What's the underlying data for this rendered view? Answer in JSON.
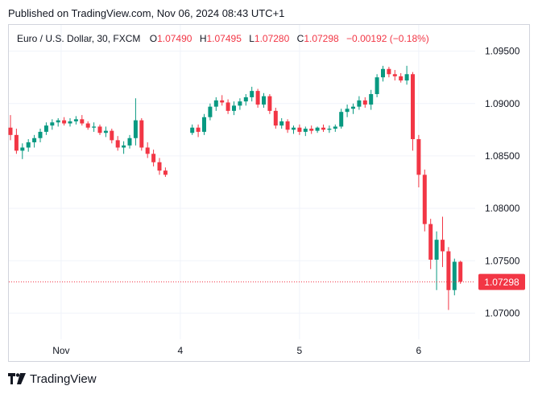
{
  "header": {
    "published": "Published on TradingView.com, Nov 06, 2024 08:43 UTC+1"
  },
  "legend": {
    "symbol": "Euro / U.S. Dollar, 30, FXCM",
    "open_label": "O",
    "open": "1.07490",
    "high_label": "H",
    "high": "1.07495",
    "low_label": "L",
    "low": "1.07280",
    "close_label": "C",
    "close": "1.07298",
    "change": "−0.00192 (−0.18%)"
  },
  "footer": {
    "brand": "TradingView"
  },
  "colors": {
    "up": "#089981",
    "down": "#f23645",
    "grid": "#f0f3fa",
    "axis_text": "#131722"
  },
  "chart_data": {
    "type": "candlestick",
    "xlabel": "",
    "ylabel": "",
    "ylim": [
      1.0675,
      1.0975
    ],
    "y_ticks": [
      "1.09500",
      "1.09000",
      "1.08500",
      "1.08000",
      "1.07500",
      "1.07000"
    ],
    "x_ticks": [
      {
        "label": "Nov",
        "t": 8.5
      },
      {
        "label": "4",
        "t": 28.5
      },
      {
        "label": "5",
        "t": 48.5
      },
      {
        "label": "6",
        "t": 68.5
      }
    ],
    "last_price": 1.07298,
    "last_price_label": "1.07298",
    "gap_after_index": 26,
    "candles": [
      [
        1.0877,
        1.0889,
        1.0865,
        1.087
      ],
      [
        1.087,
        1.0876,
        1.0852,
        1.0855
      ],
      [
        1.0855,
        1.0862,
        1.0847,
        1.0858
      ],
      [
        1.0858,
        1.0866,
        1.0854,
        1.0863
      ],
      [
        1.0863,
        1.087,
        1.0858,
        1.0867
      ],
      [
        1.0867,
        1.0876,
        1.0863,
        1.0873
      ],
      [
        1.0873,
        1.0882,
        1.087,
        1.0879
      ],
      [
        1.0879,
        1.0885,
        1.0875,
        1.0882
      ],
      [
        1.0882,
        1.0886,
        1.0878,
        1.0884
      ],
      [
        1.0884,
        1.0887,
        1.0879,
        1.0881
      ],
      [
        1.0881,
        1.0886,
        1.0878,
        1.0883
      ],
      [
        1.0883,
        1.0888,
        1.088,
        1.0885
      ],
      [
        1.0885,
        1.0889,
        1.0879,
        1.0881
      ],
      [
        1.0881,
        1.0883,
        1.0875,
        1.0877
      ],
      [
        1.0877,
        1.0882,
        1.0873,
        1.0878
      ],
      [
        1.0878,
        1.088,
        1.087,
        1.0872
      ],
      [
        1.0872,
        1.0878,
        1.0868,
        1.0874
      ],
      [
        1.0874,
        1.0876,
        1.0862,
        1.0865
      ],
      [
        1.0865,
        1.0869,
        1.0855,
        1.0858
      ],
      [
        1.0858,
        1.0864,
        1.0852,
        1.086
      ],
      [
        1.086,
        1.087,
        1.0857,
        1.0867
      ],
      [
        1.0867,
        1.0905,
        1.086,
        1.0884
      ],
      [
        1.0884,
        1.0886,
        1.0855,
        1.0858
      ],
      [
        1.0858,
        1.0863,
        1.0848,
        1.0852
      ],
      [
        1.0852,
        1.0856,
        1.084,
        1.0844
      ],
      [
        1.0844,
        1.0848,
        1.0832,
        1.0836
      ],
      [
        1.0836,
        1.0839,
        1.083,
        1.0832
      ],
      [
        1.0872,
        1.088,
        1.087,
        1.0877
      ],
      [
        1.0877,
        1.088,
        1.0868,
        1.0873
      ],
      [
        1.0873,
        1.089,
        1.087,
        1.0887
      ],
      [
        1.0887,
        1.09,
        1.0884,
        1.0897
      ],
      [
        1.0897,
        1.0906,
        1.0893,
        1.0903
      ],
      [
        1.0903,
        1.0908,
        1.0898,
        1.0901
      ],
      [
        1.0901,
        1.0904,
        1.089,
        1.0893
      ],
      [
        1.0893,
        1.0902,
        1.0889,
        1.0898
      ],
      [
        1.0898,
        1.0905,
        1.0894,
        1.0902
      ],
      [
        1.0902,
        1.0909,
        1.0898,
        1.0906
      ],
      [
        1.0906,
        1.0916,
        1.0902,
        1.0912
      ],
      [
        1.0912,
        1.0914,
        1.0896,
        1.0899
      ],
      [
        1.0899,
        1.091,
        1.0896,
        1.0907
      ],
      [
        1.0907,
        1.0909,
        1.089,
        1.0893
      ],
      [
        1.0893,
        1.0896,
        1.0876,
        1.0879
      ],
      [
        1.0879,
        1.0886,
        1.0876,
        1.0883
      ],
      [
        1.0883,
        1.0885,
        1.0872,
        1.0875
      ],
      [
        1.0875,
        1.0879,
        1.0871,
        1.0877
      ],
      [
        1.0877,
        1.088,
        1.087,
        1.0873
      ],
      [
        1.0873,
        1.0878,
        1.0869,
        1.0876
      ],
      [
        1.0876,
        1.0879,
        1.0871,
        1.0874
      ],
      [
        1.0874,
        1.0878,
        1.0872,
        1.0877
      ],
      [
        1.0877,
        1.088,
        1.0873,
        1.0875
      ],
      [
        1.0875,
        1.0879,
        1.0872,
        1.0876
      ],
      [
        1.0876,
        1.088,
        1.0873,
        1.0878
      ],
      [
        1.0878,
        1.0895,
        1.0876,
        1.0892
      ],
      [
        1.0892,
        1.0899,
        1.0887,
        1.0895
      ],
      [
        1.0895,
        1.09,
        1.089,
        1.0897
      ],
      [
        1.0897,
        1.0907,
        1.0894,
        1.0903
      ],
      [
        1.0903,
        1.0906,
        1.0896,
        1.0899
      ],
      [
        1.0899,
        1.0913,
        1.0894,
        1.0909
      ],
      [
        1.0909,
        1.0928,
        1.0906,
        1.0925
      ],
      [
        1.0925,
        1.0936,
        1.0921,
        1.0933
      ],
      [
        1.0933,
        1.0935,
        1.0925,
        1.0928
      ],
      [
        1.0928,
        1.0932,
        1.0922,
        1.0926
      ],
      [
        1.0926,
        1.0929,
        1.092,
        1.0922
      ],
      [
        1.0922,
        1.0936,
        1.0918,
        1.0928
      ],
      [
        1.0928,
        1.093,
        1.0855,
        1.0866
      ],
      [
        1.0866,
        1.087,
        1.082,
        1.0832
      ],
      [
        1.0832,
        1.0837,
        1.0778,
        1.0785
      ],
      [
        1.0785,
        1.079,
        1.0742,
        1.0751
      ],
      [
        1.0751,
        1.0778,
        1.0722,
        1.077
      ],
      [
        1.077,
        1.0792,
        1.0744,
        1.0759
      ],
      [
        1.0759,
        1.0763,
        1.0703,
        1.0722
      ],
      [
        1.0722,
        1.0752,
        1.0717,
        1.0749
      ],
      [
        1.0749,
        1.075,
        1.0728,
        1.073
      ]
    ]
  }
}
